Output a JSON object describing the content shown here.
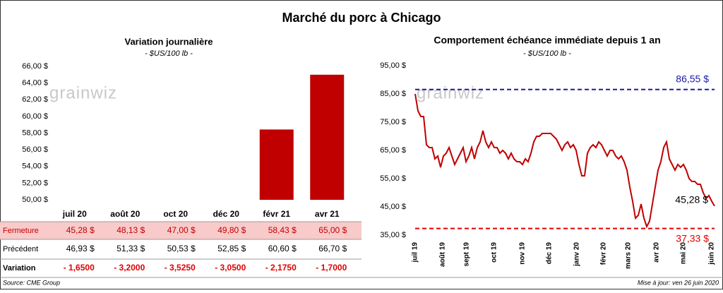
{
  "title": "Marché du porc à Chicago",
  "watermark": "grainwiz",
  "source": "Source: CME Group",
  "updated": "Mise à jour: ven 26 juin 2020",
  "chart_data": [
    {
      "type": "bar",
      "title": "Variation journalière",
      "subtitle": "- $US/100 lb -",
      "categories": [
        "juil 20",
        "août 20",
        "oct 20",
        "déc 20",
        "févr 21",
        "avr 21"
      ],
      "values": [
        45.28,
        48.13,
        47.0,
        49.8,
        58.43,
        65.0
      ],
      "value_labels": [
        "45,28 $",
        "48,13 $",
        "47,00 $",
        "49,80 $",
        "58,43 $",
        "65,00 $"
      ],
      "color": "#c00000",
      "ylim": [
        50,
        66
      ],
      "yticks": [
        {
          "value": 50,
          "label": "50,00 $"
        },
        {
          "value": 52,
          "label": "52,00 $"
        },
        {
          "value": 54,
          "label": "54,00 $"
        },
        {
          "value": 56,
          "label": "56,00 $"
        },
        {
          "value": 58,
          "label": "58,00 $"
        },
        {
          "value": 60,
          "label": "60,00 $"
        },
        {
          "value": 62,
          "label": "62,00 $"
        },
        {
          "value": 64,
          "label": "64,00 $"
        },
        {
          "value": 66,
          "label": "66,00 $"
        }
      ]
    },
    {
      "type": "line",
      "title": "Comportement échéance immédiate depuis 1 an",
      "subtitle": "- $US/100 lb -",
      "color": "#c00000",
      "values": [
        85,
        79,
        77,
        77,
        67,
        66,
        66,
        62,
        63,
        59,
        63,
        64,
        66,
        63,
        60,
        62,
        64,
        66,
        61,
        63,
        66,
        62,
        66,
        68,
        72,
        68,
        66,
        68,
        66,
        66,
        64,
        65,
        64,
        62,
        64,
        62,
        61,
        61,
        60,
        62,
        61,
        64,
        68,
        70,
        70,
        71,
        71,
        71,
        71,
        70,
        69,
        67,
        65,
        67,
        68,
        66,
        67,
        65,
        60,
        56,
        56,
        64,
        66,
        67,
        66,
        68,
        67,
        65,
        63,
        65,
        65,
        63,
        62,
        63,
        61,
        58,
        52,
        47,
        41,
        42,
        46,
        41,
        38,
        40,
        46,
        52,
        58,
        61,
        66,
        68,
        62,
        60,
        58,
        60,
        59,
        60,
        58,
        55,
        54,
        54,
        53,
        53,
        50,
        48,
        49,
        47,
        45.28
      ],
      "xlim": [
        0,
        106
      ],
      "xticks": [
        {
          "value": 0,
          "label": "juil 19"
        },
        {
          "value": 9.75,
          "label": "août 19"
        },
        {
          "value": 18.25,
          "label": "sept 19"
        },
        {
          "value": 28,
          "label": "oct 19"
        },
        {
          "value": 38,
          "label": "nov 19"
        },
        {
          "value": 47.5,
          "label": "déc 19"
        },
        {
          "value": 57.25,
          "label": "janv 20"
        },
        {
          "value": 66.75,
          "label": "févr 20"
        },
        {
          "value": 75.5,
          "label": "mars 20"
        },
        {
          "value": 85.5,
          "label": "avr 20"
        },
        {
          "value": 95,
          "label": "mai 20"
        },
        {
          "value": 105,
          "label": "juin 20"
        }
      ],
      "ylim": [
        35,
        95
      ],
      "yticks": [
        {
          "value": 35,
          "label": "35,00 $"
        },
        {
          "value": 45,
          "label": "45,00 $"
        },
        {
          "value": 55,
          "label": "55,00 $"
        },
        {
          "value": 65,
          "label": "65,00 $"
        },
        {
          "value": 75,
          "label": "75,00 $"
        },
        {
          "value": 85,
          "label": "85,00 $"
        },
        {
          "value": 95,
          "label": "95,00 $"
        }
      ],
      "reference_lines": [
        {
          "value": 86.55,
          "label": "86,55 $",
          "color": "#1a1aa6"
        },
        {
          "value": 37.33,
          "label": "37,33 $",
          "color": "#e00000"
        }
      ],
      "end_label": "45,28 $"
    }
  ],
  "table": {
    "row_labels": [
      "Fermeture",
      "Précédent",
      "Variation"
    ],
    "previous": [
      "46,93 $",
      "51,33 $",
      "50,53 $",
      "52,85 $",
      "60,60 $",
      "66,70 $"
    ],
    "change": [
      "- 1,6500",
      "- 3,2000",
      "- 3,5250",
      "- 3,0500",
      "- 2,1750",
      "- 1,7000"
    ]
  }
}
